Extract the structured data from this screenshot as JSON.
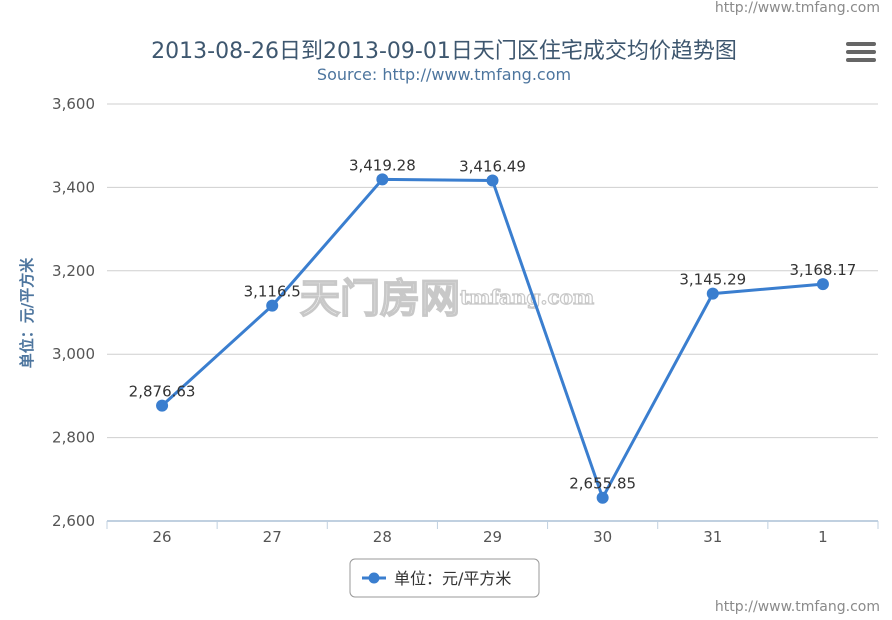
{
  "watermark": {
    "top": "http://www.tmfang.com",
    "bottom": "http://www.tmfang.com",
    "center_cn": "天门房网",
    "center_en": "tmfang.com"
  },
  "menu": {
    "icon": "hamburger-menu-icon"
  },
  "chart_data": {
    "type": "line",
    "title": "2013-08-26日到2013-09-01日天门区住宅成交均价趋势图",
    "subtitle": "Source: http://www.tmfang.com",
    "ylabel": "单位：元/平方米",
    "xlabel": "",
    "categories": [
      "26",
      "27",
      "28",
      "29",
      "30",
      "31",
      "1"
    ],
    "series": [
      {
        "name": "单位：元/平方米",
        "values": [
          2876.63,
          3116.5,
          3419.28,
          3416.49,
          2655.85,
          3145.29,
          3168.17
        ],
        "labels": [
          "2,876.63",
          "3,116.5",
          "3,419.28",
          "3,416.49",
          "2,655.85",
          "3,145.29",
          "3,168.17"
        ]
      }
    ],
    "ylim": [
      2600,
      3600
    ],
    "yticks": [
      2600,
      2800,
      3000,
      3200,
      3400,
      3600
    ],
    "ytick_labels": [
      "2,600",
      "2,800",
      "3,000",
      "3,200",
      "3,400",
      "3,600"
    ],
    "grid": true,
    "legend": "bottom-center",
    "color": "#3a7ecf"
  }
}
